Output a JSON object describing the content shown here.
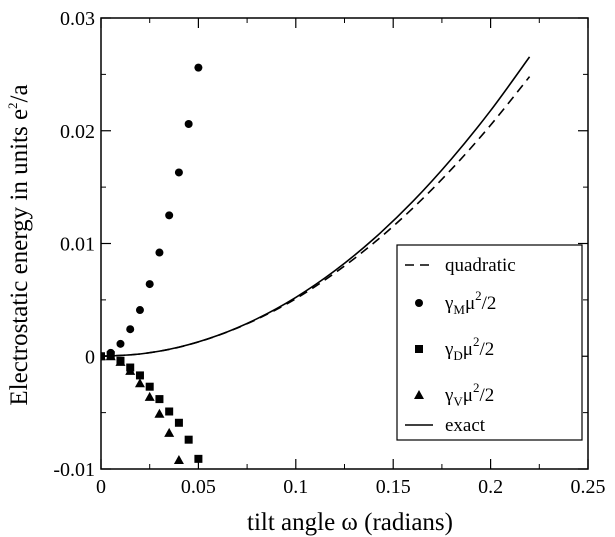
{
  "chart_data": {
    "type": "scatter",
    "title": "",
    "xlabel": "tilt angle ω (radians)",
    "ylabel": "Electrostatic energy in units e",
    "ylabel_sup": "2",
    "ylabel_tail": "/a",
    "xlim": [
      0,
      0.25
    ],
    "ylim": [
      -0.01,
      0.03
    ],
    "x_ticks": [
      0,
      0.05,
      0.1,
      0.15,
      0.2,
      0.25
    ],
    "x_tick_labels": [
      "0",
      "0.05",
      "0.1",
      "0.15",
      "0.2",
      "0.25"
    ],
    "y_ticks": [
      -0.01,
      0,
      0.01,
      0.02,
      0.03
    ],
    "y_tick_labels": [
      "-0.01",
      "0",
      "0.01",
      "0.02",
      "0.03"
    ],
    "grid": false,
    "legend_position": "right",
    "series": [
      {
        "name": "quadratic",
        "kind": "line",
        "style": "dashed",
        "x": [
          0,
          0.02,
          0.04,
          0.06,
          0.08,
          0.1,
          0.12,
          0.14,
          0.16,
          0.18,
          0.2,
          0.22
        ],
        "y": [
          0,
          0.0002,
          0.0008,
          0.00184,
          0.00328,
          0.0051,
          0.00738,
          0.01004,
          0.01312,
          0.0166,
          0.0205,
          0.0248
        ]
      },
      {
        "name": "γ",
        "sub": "M",
        "tail": "μ",
        "sup": "2",
        "end": "/2",
        "kind": "marker",
        "marker": "circle",
        "x": [
          0,
          0.005,
          0.01,
          0.015,
          0.02,
          0.025,
          0.03,
          0.035,
          0.04,
          0.045,
          0.05
        ],
        "y": [
          0,
          0.0003,
          0.0011,
          0.0024,
          0.0041,
          0.0064,
          0.0092,
          0.0125,
          0.0163,
          0.0206,
          0.0256
        ]
      },
      {
        "name": "γ",
        "sub": "D",
        "tail": "μ",
        "sup": "2",
        "end": "/2",
        "kind": "marker",
        "marker": "square",
        "x": [
          0,
          0.005,
          0.01,
          0.015,
          0.02,
          0.025,
          0.03,
          0.035,
          0.04,
          0.045,
          0.05
        ],
        "y": [
          0,
          0.0001,
          -0.0004,
          -0.001,
          -0.0017,
          -0.0027,
          -0.0038,
          -0.0049,
          -0.0059,
          -0.0074,
          -0.0091
        ]
      },
      {
        "name": "γ",
        "sub": "V",
        "tail": "μ",
        "sup": "2",
        "end": "/2",
        "kind": "marker",
        "marker": "triangle",
        "x": [
          0,
          0.005,
          0.01,
          0.015,
          0.02,
          0.025,
          0.03,
          0.035,
          0.04
        ],
        "y": [
          0,
          0,
          -0.0005,
          -0.0013,
          -0.0024,
          -0.0036,
          -0.0051,
          -0.0068,
          -0.0092
        ]
      },
      {
        "name": "exact",
        "kind": "line",
        "style": "solid",
        "x": [
          0,
          0.02,
          0.04,
          0.06,
          0.08,
          0.1,
          0.12,
          0.14,
          0.16,
          0.18,
          0.2,
          0.22
        ],
        "y": [
          0,
          0.0002,
          0.00081,
          0.00185,
          0.00332,
          0.00522,
          0.00758,
          0.01041,
          0.01372,
          0.01752,
          0.02179,
          0.02655
        ]
      }
    ]
  }
}
